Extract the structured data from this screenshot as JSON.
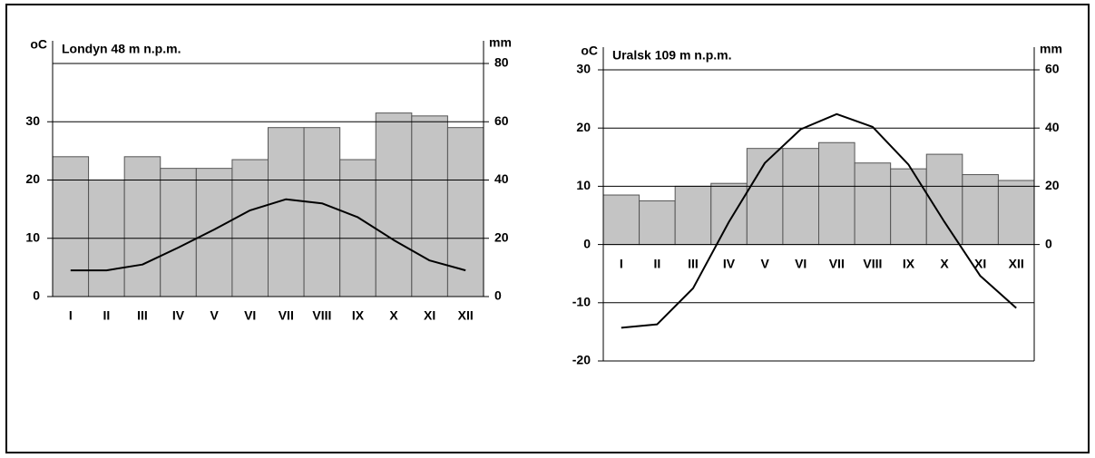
{
  "chart_data": [
    {
      "type": "combo",
      "title": "Londyn 48 m n.p.m.",
      "y_label": "oC",
      "y2_label": "mm",
      "categories": [
        "I",
        "II",
        "III",
        "IV",
        "V",
        "VI",
        "VII",
        "VIII",
        "IX",
        "X",
        "XI",
        "XII"
      ],
      "ylim": [
        0,
        40
      ],
      "yticks": [
        0,
        10,
        20,
        30
      ],
      "y2lim": [
        0,
        80
      ],
      "y2ticks": [
        0,
        20,
        40,
        60,
        80
      ],
      "grid": true,
      "series": [
        {
          "type": "bar",
          "axis": "y2",
          "color": "#c4c4c4",
          "values": [
            48,
            40,
            48,
            44,
            44,
            47,
            58,
            58,
            47,
            63,
            62,
            58
          ]
        },
        {
          "type": "line",
          "color": "#000000",
          "values": [
            4.5,
            4.5,
            5.5,
            8.4,
            11.5,
            14.8,
            16.7,
            16,
            13.6,
            9.7,
            6.2,
            4.5
          ]
        }
      ]
    },
    {
      "type": "combo",
      "title": "Uralsk 109 m n.p.m.",
      "y_label": "oC",
      "y2_label": "mm",
      "categories": [
        "I",
        "II",
        "III",
        "IV",
        "V",
        "VI",
        "VII",
        "VIII",
        "IX",
        "X",
        "XI",
        "XII"
      ],
      "ylim": [
        -20,
        30
      ],
      "yticks": [
        -20,
        -10,
        0,
        10,
        20,
        30
      ],
      "y2lim": [
        -40,
        60
      ],
      "y2ticks": [
        0,
        20,
        40,
        60
      ],
      "grid": true,
      "series": [
        {
          "type": "bar",
          "axis": "y2",
          "color": "#c4c4c4",
          "values": [
            17,
            15,
            20,
            21,
            33,
            33,
            35,
            28,
            26,
            31,
            24,
            22
          ]
        },
        {
          "type": "line",
          "color": "#000000",
          "values": [
            -14.3,
            -13.7,
            -7.5,
            3.9,
            14,
            19.8,
            22.4,
            20.2,
            13.7,
            3.9,
            -5.4,
            -10.9
          ]
        }
      ]
    }
  ]
}
